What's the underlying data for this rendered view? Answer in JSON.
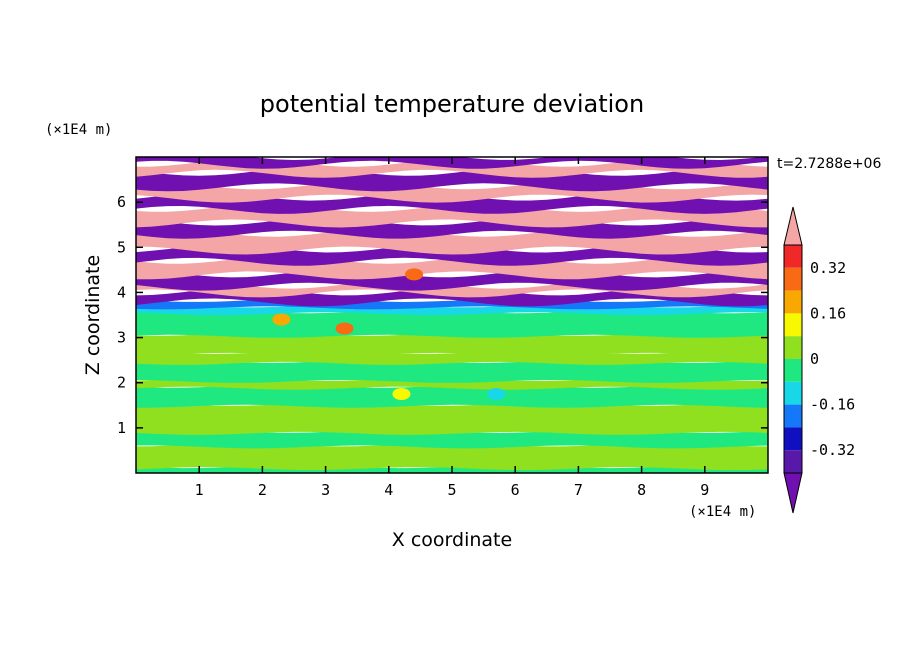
{
  "chart_data": {
    "type": "heatmap",
    "title": "potential temperature deviation",
    "xlabel": "X coordinate",
    "ylabel": "Z coordinate",
    "x_unit": "(×1E4 m)",
    "y_unit": "(×1E4 m)",
    "time_label": "t=2.7288e+06",
    "xlim": [
      0,
      10
    ],
    "ylim": [
      0,
      7
    ],
    "x_ticks": [
      "1",
      "2",
      "3",
      "4",
      "5",
      "6",
      "7",
      "8",
      "9"
    ],
    "y_ticks": [
      "1",
      "2",
      "3",
      "4",
      "5",
      "6"
    ],
    "colorbar": {
      "tick_labels": [
        "0.32",
        "0.16",
        "0",
        "-0.16",
        "-0.32"
      ],
      "tick_values": [
        0.32,
        0.16,
        0,
        -0.16,
        -0.32
      ],
      "levels": [
        {
          "min": 0.4,
          "max": null,
          "color": "#f4a6a6"
        },
        {
          "min": 0.32,
          "max": 0.4,
          "color": "#f02828"
        },
        {
          "min": 0.24,
          "max": 0.32,
          "color": "#f86a14"
        },
        {
          "min": 0.16,
          "max": 0.24,
          "color": "#f8a800"
        },
        {
          "min": 0.08,
          "max": 0.16,
          "color": "#f8f800"
        },
        {
          "min": 0,
          "max": 0.08,
          "color": "#90e020"
        },
        {
          "min": -0.08,
          "max": 0,
          "color": "#20e880"
        },
        {
          "min": -0.16,
          "max": -0.08,
          "color": "#18d8e8"
        },
        {
          "min": -0.24,
          "max": -0.16,
          "color": "#1478f8"
        },
        {
          "min": -0.32,
          "max": -0.24,
          "color": "#1010c0"
        },
        {
          "min": -0.4,
          "max": -0.32,
          "color": "#5818a8"
        },
        {
          "min": null,
          "max": -0.4,
          "color": "#7010b0"
        }
      ]
    },
    "bands": [
      {
        "z0": 0.0,
        "z1": 0.12,
        "value": -0.02
      },
      {
        "z0": 0.12,
        "z1": 0.6,
        "value": 0.05
      },
      {
        "z0": 0.6,
        "z1": 0.9,
        "value": -0.04
      },
      {
        "z0": 0.9,
        "z1": 1.5,
        "value": 0.04
      },
      {
        "z0": 1.5,
        "z1": 1.9,
        "value": -0.04
      },
      {
        "z0": 1.9,
        "z1": 2.05,
        "value": 0.03
      },
      {
        "z0": 2.05,
        "z1": 2.45,
        "value": -0.05
      },
      {
        "z0": 2.45,
        "z1": 2.65,
        "value": 0.04
      },
      {
        "z0": 2.65,
        "z1": 3.05,
        "value": 0.05
      },
      {
        "z0": 3.05,
        "z1": 3.55,
        "value": -0.04
      },
      {
        "z0": 3.55,
        "z1": 3.68,
        "value": -0.12
      },
      {
        "z0": 3.68,
        "z1": 3.8,
        "value": -0.2
      },
      {
        "z0": 3.8,
        "z1": 4.0,
        "value": -0.45
      },
      {
        "z0": 4.0,
        "z1": 4.15,
        "value": 0.45
      },
      {
        "z0": 4.15,
        "z1": 4.4,
        "value": -0.45
      },
      {
        "z0": 4.4,
        "z1": 4.7,
        "value": 0.45
      },
      {
        "z0": 4.7,
        "z1": 4.95,
        "value": -0.45
      },
      {
        "z0": 4.95,
        "z1": 5.3,
        "value": 0.45
      },
      {
        "z0": 5.3,
        "z1": 5.55,
        "value": -0.45
      },
      {
        "z0": 5.55,
        "z1": 5.85,
        "value": 0.45
      },
      {
        "z0": 5.85,
        "z1": 6.1,
        "value": -0.45
      },
      {
        "z0": 6.1,
        "z1": 6.35,
        "value": 0.45
      },
      {
        "z0": 6.35,
        "z1": 6.65,
        "value": -0.45
      },
      {
        "z0": 6.65,
        "z1": 6.85,
        "value": 0.45
      },
      {
        "z0": 6.85,
        "z1": 7.0,
        "value": -0.45
      }
    ],
    "features": [
      {
        "x": 4.2,
        "z": 1.75,
        "value": 0.12
      },
      {
        "x": 5.7,
        "z": 1.75,
        "value": -0.12
      },
      {
        "x": 3.3,
        "z": 3.2,
        "value": 0.3
      },
      {
        "x": 4.4,
        "z": 4.4,
        "value": 0.3
      },
      {
        "x": 2.3,
        "z": 3.4,
        "value": 0.2
      }
    ]
  }
}
